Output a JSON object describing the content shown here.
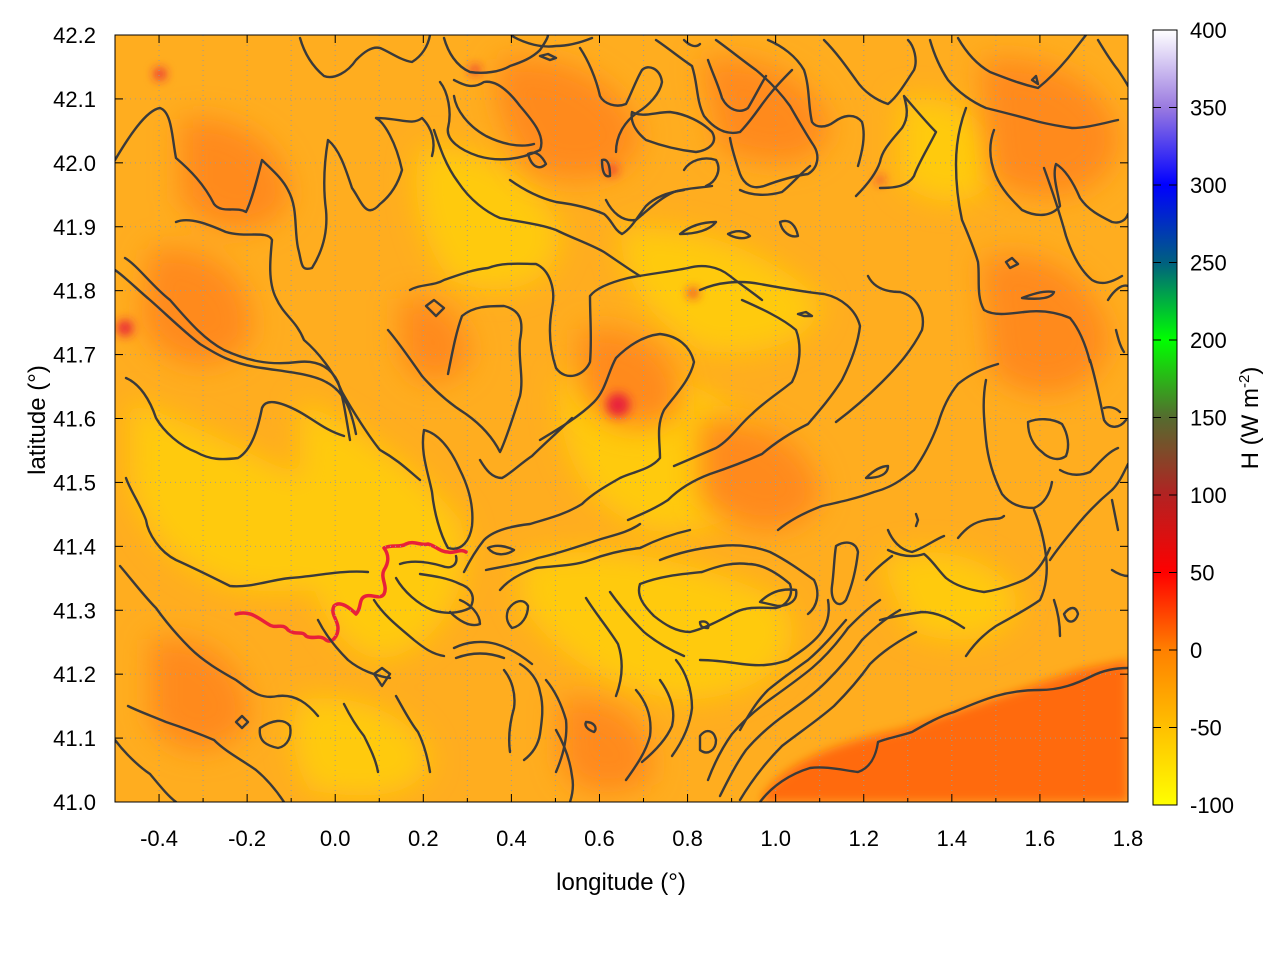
{
  "chart_data": {
    "type": "heatmap",
    "title": "",
    "xlabel": "longitude (°)",
    "ylabel": "latitude (°)",
    "xlim": [
      -0.5,
      1.8
    ],
    "ylim": [
      41.0,
      42.2
    ],
    "x_ticks": [
      "-0.4",
      "-0.2",
      "0.0",
      "0.2",
      "0.4",
      "0.6",
      "0.8",
      "1.0",
      "1.2",
      "1.4",
      "1.6",
      "1.8"
    ],
    "x_tick_values": [
      -0.4,
      -0.2,
      0.0,
      0.2,
      0.4,
      0.6,
      0.8,
      1.0,
      1.2,
      1.4,
      1.6,
      1.8
    ],
    "y_ticks": [
      "41.0",
      "41.1",
      "41.2",
      "41.3",
      "41.4",
      "41.5",
      "41.6",
      "41.7",
      "41.8",
      "41.9",
      "42.0",
      "42.1",
      "42.2"
    ],
    "y_tick_values": [
      41.0,
      41.1,
      41.2,
      41.3,
      41.4,
      41.5,
      41.6,
      41.7,
      41.8,
      41.9,
      42.0,
      42.1,
      42.2
    ],
    "grid": true,
    "overlay": "terrain elevation contour lines (dark gray)",
    "field_range_approx": [
      -60,
      10
    ],
    "colorbar": {
      "label_main": "H (W m",
      "label_sup": "-2",
      "label_close": ")",
      "range": [
        -100,
        400
      ],
      "ticks": [
        "400",
        "350",
        "300",
        "250",
        "200",
        "150",
        "100",
        "50",
        "0",
        "-50",
        "-100"
      ],
      "tick_values": [
        400,
        350,
        300,
        250,
        200,
        150,
        100,
        50,
        0,
        -50,
        -100
      ],
      "colors": [
        {
          "value": -100,
          "color": "#ffff00"
        },
        {
          "value": -50,
          "color": "#ffc000"
        },
        {
          "value": 0,
          "color": "#ff8000"
        },
        {
          "value": 50,
          "color": "#ff0000"
        },
        {
          "value": 100,
          "color": "#b22222"
        },
        {
          "value": 150,
          "color": "#556b2f"
        },
        {
          "value": 200,
          "color": "#00ff00"
        },
        {
          "value": 250,
          "color": "#006080"
        },
        {
          "value": 300,
          "color": "#0000ff"
        },
        {
          "value": 350,
          "color": "#9a7ae0"
        },
        {
          "value": 400,
          "color": "#ffffff"
        }
      ]
    },
    "field_colors": {
      "background": "#ffad1f",
      "light": "#ffca0a",
      "dark": "#ff8a1a",
      "darkest": "#ff6a10",
      "contour": "#3a3a3a",
      "river": "#e8203a"
    }
  }
}
